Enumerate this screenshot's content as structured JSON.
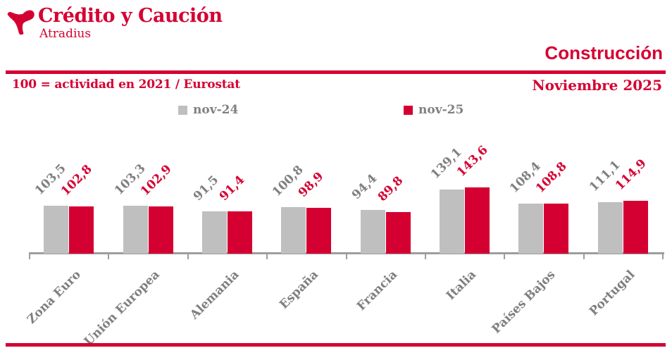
{
  "header": {
    "brand": "Crédito y Caución",
    "brand_sub": "Atradius",
    "logo_icon": "atradius-bird-icon",
    "section_title": "Construcción",
    "subtitle_left": "100 = actividad en 2021 / Eurostat",
    "subtitle_right": "Noviembre 2025"
  },
  "colors": {
    "brand_red": "#d50032",
    "bar_gray": "#bfbfbf",
    "text_gray": "#808080",
    "axis_gray": "#9d9d9d"
  },
  "chart_data": {
    "type": "bar",
    "title": "Construcción",
    "subtitle": "100 = actividad en 2021 / Eurostat",
    "period": "Noviembre 2025",
    "categories": [
      "Zona Euro",
      "Unión Europea",
      "Alemania",
      "España",
      "Francia",
      "Italia",
      "Países Bajos",
      "Portugal"
    ],
    "series": [
      {
        "name": "nov-24",
        "color": "#bfbfbf",
        "values": [
          103.5,
          103.3,
          91.5,
          100.8,
          94.4,
          139.1,
          108.4,
          111.1
        ]
      },
      {
        "name": "nov-25",
        "color": "#d50032",
        "values": [
          102.8,
          102.9,
          91.4,
          98.9,
          89.8,
          143.6,
          108.8,
          114.9
        ]
      }
    ],
    "decimal_separator": ",",
    "value_labels_rotated_degrees": 45,
    "xlabel": "",
    "ylabel": "",
    "ylim": [
      0,
      150
    ],
    "grid": false,
    "legend_position": "top"
  }
}
